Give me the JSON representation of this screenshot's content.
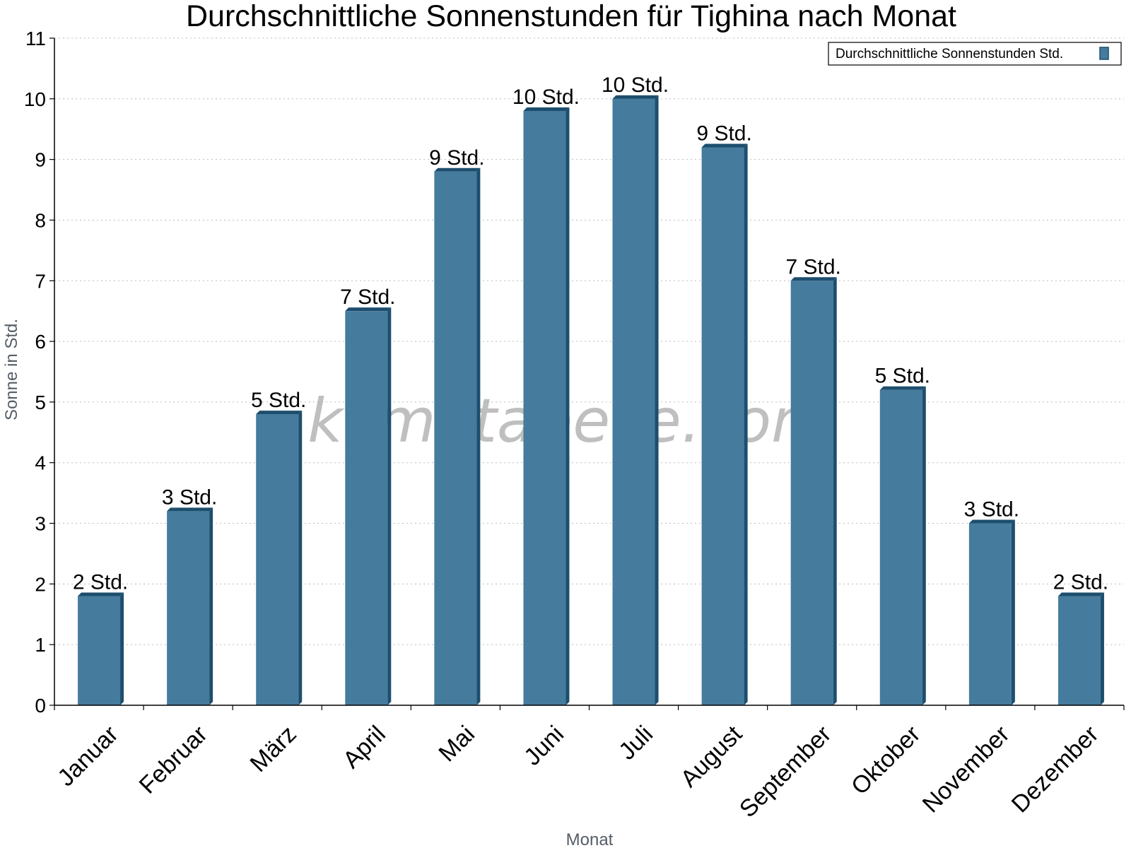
{
  "chart_data": {
    "type": "bar",
    "title": "Durchschnittliche Sonnenstunden für Tighina nach Monat",
    "xlabel": "Monat",
    "ylabel": "Sonne in Std.",
    "categories": [
      "Januar",
      "Februar",
      "März",
      "April",
      "Mai",
      "Juni",
      "Juli",
      "August",
      "September",
      "Oktober",
      "November",
      "Dezember"
    ],
    "series": [
      {
        "name": "Durchschnittliche Sonnenstunden Std.",
        "values": [
          1.8,
          3.2,
          4.8,
          6.5,
          8.8,
          9.8,
          10.0,
          9.2,
          7.0,
          5.2,
          3.0,
          1.8
        ],
        "labels": [
          "2 Std.",
          "3 Std.",
          "5 Std.",
          "7 Std.",
          "9 Std.",
          "10 Std.",
          "10 Std.",
          "9 Std.",
          "7 Std.",
          "5 Std.",
          "3 Std.",
          "2 Std."
        ]
      }
    ],
    "ylim": [
      0,
      11
    ],
    "yticks": [
      0,
      1,
      2,
      3,
      4,
      5,
      6,
      7,
      8,
      9,
      10,
      11
    ],
    "grid": true,
    "legend": "top-right",
    "colors": {
      "bar": "#457b9d",
      "bar_side": "#1d4e6e",
      "grid": "#bbbbbb"
    },
    "watermark": "klimatabelle.com"
  }
}
